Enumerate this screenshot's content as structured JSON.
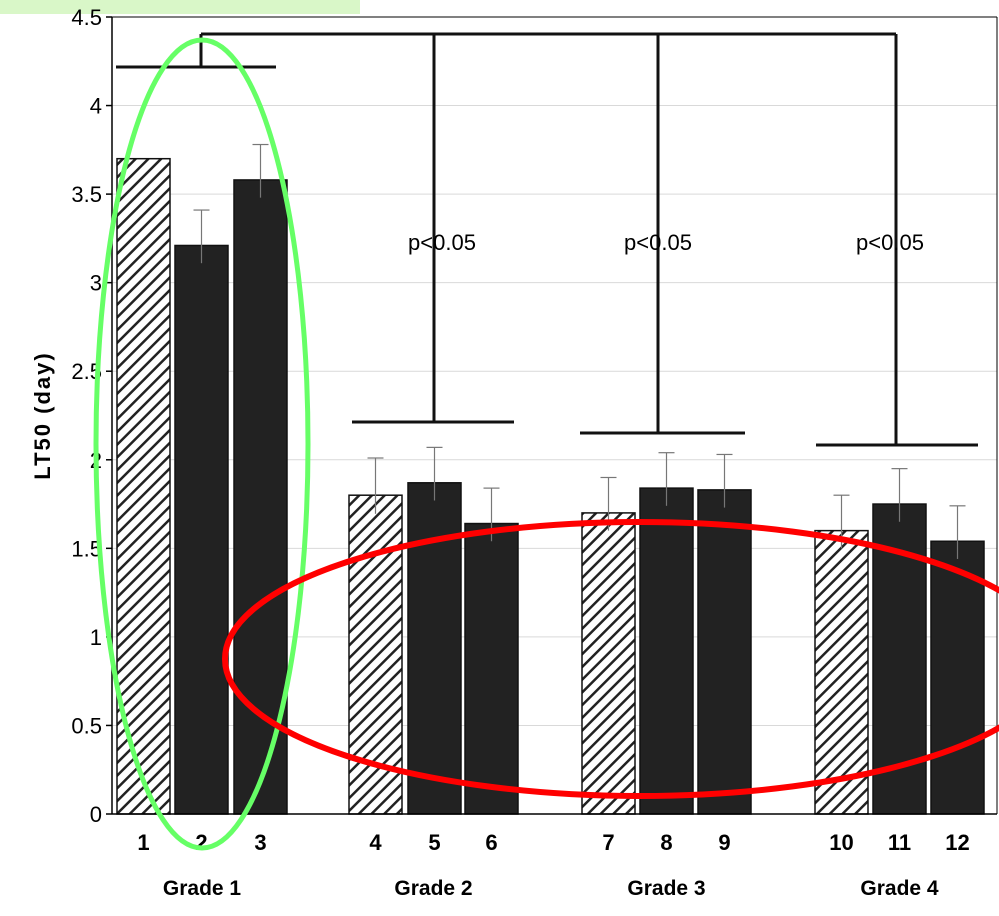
{
  "chart_data": {
    "type": "bar",
    "title": "",
    "xlabel": "",
    "ylabel": "LT50 (day)",
    "ylim": [
      0,
      4.5
    ],
    "yticks": [
      "0",
      "0.5",
      "1",
      "1.5",
      "2",
      "2.5",
      "3",
      "3.5",
      "4",
      "4.5"
    ],
    "grid": true,
    "categories": [
      "1",
      "2",
      "3",
      "4",
      "5",
      "6",
      "7",
      "8",
      "9",
      "10",
      "11",
      "12"
    ],
    "values": [
      3.7,
      3.21,
      3.58,
      1.8,
      1.87,
      1.64,
      1.7,
      1.84,
      1.83,
      1.6,
      1.75,
      1.54
    ],
    "errors": [
      0.0,
      0.2,
      0.2,
      0.21,
      0.2,
      0.2,
      0.2,
      0.2,
      0.2,
      0.2,
      0.2,
      0.2
    ],
    "patterns": [
      "hatched",
      "solid",
      "solid",
      "hatched",
      "solid",
      "solid",
      "hatched",
      "solid",
      "solid",
      "hatched",
      "solid",
      "solid"
    ],
    "groups": [
      {
        "label": "Grade 1",
        "members": [
          0,
          1,
          2
        ]
      },
      {
        "label": "Grade 2",
        "members": [
          3,
          4,
          5
        ]
      },
      {
        "label": "Grade 3",
        "members": [
          6,
          7,
          8
        ]
      },
      {
        "label": "Grade 4",
        "members": [
          9,
          10,
          11
        ]
      }
    ],
    "annotations": [
      "p<0.05",
      "p<0.05",
      "p<0.05"
    ],
    "highlights": [
      {
        "color": "#66ff66",
        "target": "Grade 1"
      },
      {
        "color": "#ff0000",
        "target": "Grade 2-4"
      }
    ],
    "colors": {
      "bar": "#222222",
      "axis": "#000000",
      "grid": "#d9d9d9"
    }
  }
}
